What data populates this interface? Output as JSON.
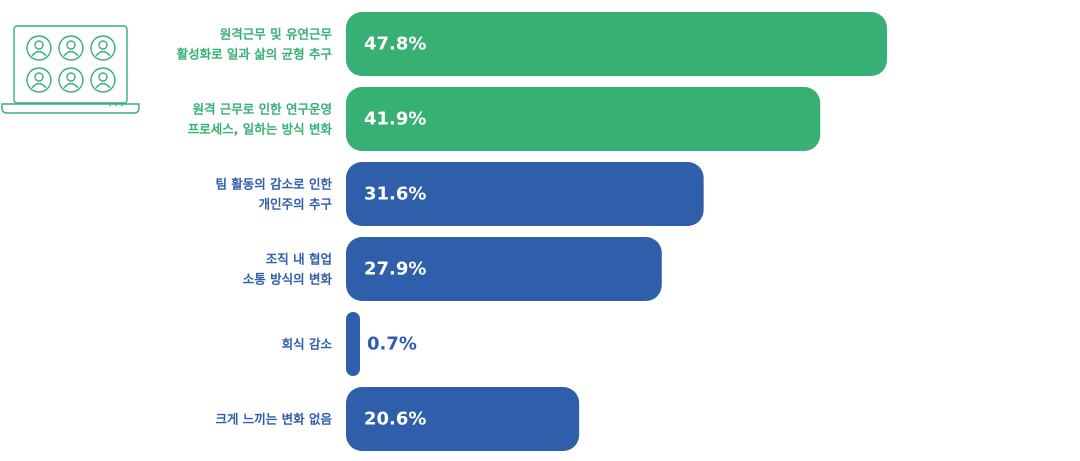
{
  "chart_data": {
    "type": "bar",
    "orientation": "horizontal",
    "categories": [
      [
        "원격근무 및 유연근무",
        "활성화로 일과 삶의 균형 추구"
      ],
      [
        "원격 근무로 인한 연구운영",
        "프로세스, 일하는 방식 변화"
      ],
      [
        "팀 활동의 감소로 인한",
        "개인주의 추구"
      ],
      [
        "조직 내 협업",
        "소통 방식의 변화"
      ],
      [
        "회식 감소"
      ],
      [
        "크게 느끼는 변화 없음"
      ]
    ],
    "values": [
      47.8,
      41.9,
      31.6,
      27.9,
      0.7,
      20.6
    ],
    "value_labels": [
      "47.8%",
      "41.9%",
      "31.6%",
      "27.9%",
      "0.7%",
      "20.6%"
    ],
    "bar_colors": [
      "#37b074",
      "#37b074",
      "#2f5eab",
      "#2f5eab",
      "#2f5eab",
      "#2f5eab"
    ],
    "label_colors": [
      "#37b074",
      "#37b074",
      "#2f5eab",
      "#2f5eab",
      "#2f5eab",
      "#2f5eab"
    ],
    "title": "",
    "xlabel": "",
    "ylabel": "",
    "xlim": [
      0,
      47.8
    ],
    "grid": false,
    "legend": "none"
  },
  "icon": {
    "name": "laptop-video-meeting-icon",
    "color": "#37b074"
  }
}
